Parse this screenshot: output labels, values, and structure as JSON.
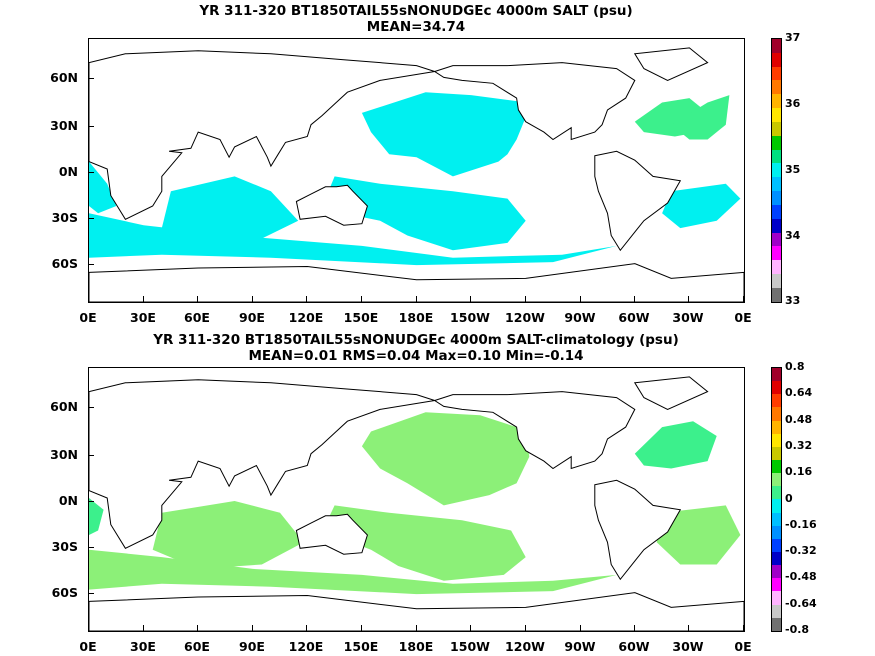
{
  "panels": [
    {
      "title_line1": "YR 311-320 BT1850TAIL55sNONUDGEc 4000m SALT (psu)",
      "title_line2": "MEAN=34.74",
      "fill_color": "#00f0f0",
      "secondary_color": "#3cf08c",
      "colorbar_labels": [
        "37",
        "36",
        "35",
        "34",
        "33"
      ],
      "colorbar_colors": [
        "#a0002a",
        "#e00000",
        "#ff3c00",
        "#ff7800",
        "#ffb400",
        "#ffe600",
        "#c8c800",
        "#00c800",
        "#00e080",
        "#00f0f0",
        "#00c0ff",
        "#0090ff",
        "#0040ff",
        "#0000c8",
        "#a000c8",
        "#ff00ff",
        "#ffb4ff",
        "#c8c8c8",
        "#707070"
      ]
    },
    {
      "title_line1": "YR 311-320 BT1850TAIL55sNONUDGEc 4000m SALT-climatology (psu)",
      "title_line2": "MEAN=0.01   RMS=0.04   Max=0.10   Min=-0.14",
      "fill_color": "#8cf078",
      "secondary_color": "#3cf08c",
      "colorbar_labels": [
        "0.8",
        "0.64",
        "0.48",
        "0.32",
        "0.16",
        "0",
        "-0.16",
        "-0.32",
        "-0.48",
        "-0.64",
        "-0.8"
      ],
      "colorbar_colors": [
        "#a0002a",
        "#e00000",
        "#ff3c00",
        "#ff7800",
        "#ffb400",
        "#ffe600",
        "#c8c800",
        "#00c800",
        "#8cf078",
        "#3cf08c",
        "#00f0f0",
        "#00c0ff",
        "#0090ff",
        "#0040ff",
        "#0000c8",
        "#a000c8",
        "#ff00ff",
        "#ffb4ff",
        "#c8c8c8",
        "#707070"
      ]
    }
  ],
  "lat_labels": [
    "60N",
    "30N",
    "0N",
    "30S",
    "60S"
  ],
  "lon_labels": [
    "0E",
    "30E",
    "60E",
    "90E",
    "120E",
    "150E",
    "180E",
    "150W",
    "120W",
    "90W",
    "60W",
    "30W",
    "0E"
  ]
}
